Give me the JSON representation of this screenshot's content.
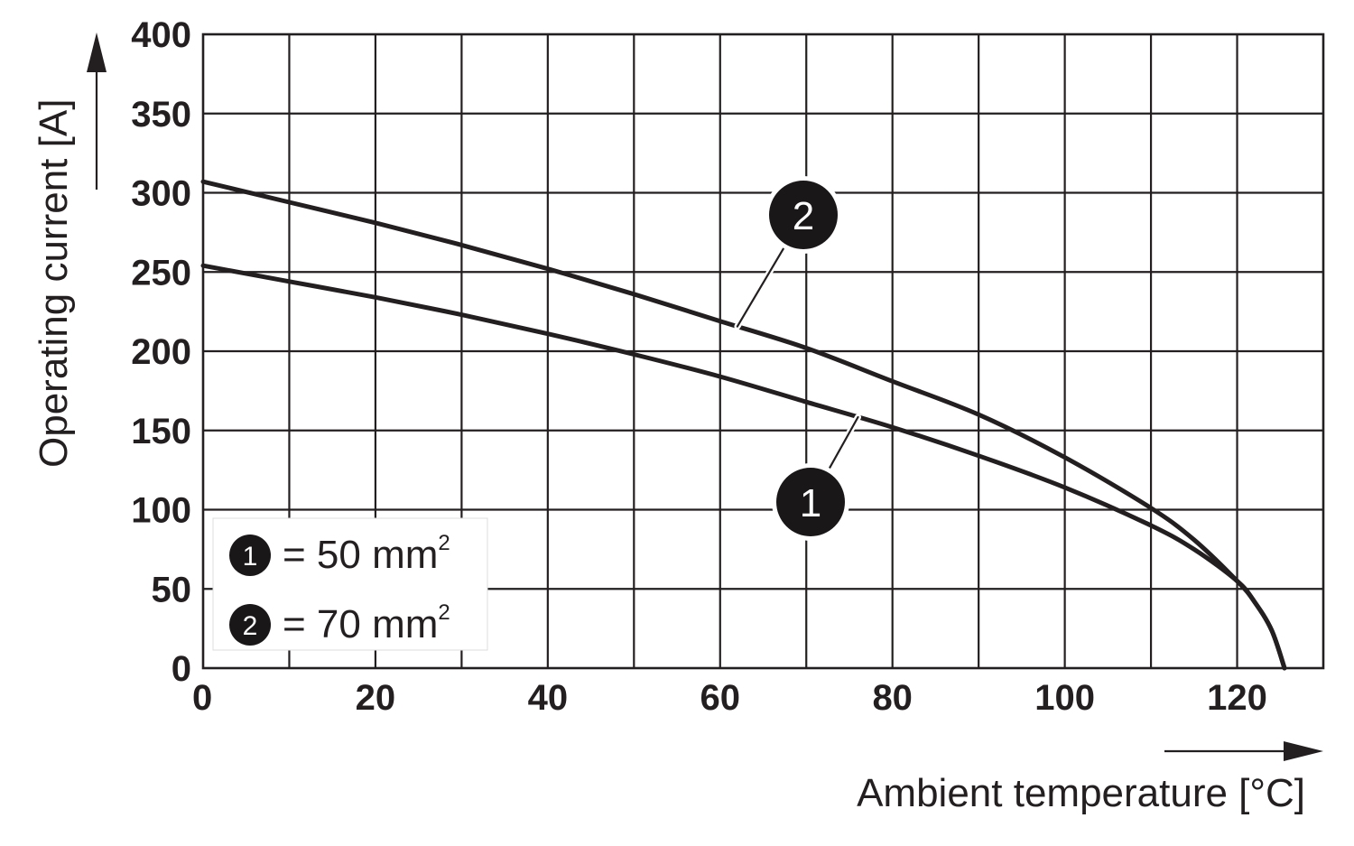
{
  "chart_data": {
    "type": "line",
    "xlabel": "Ambient temperature [°C]",
    "ylabel": "Operating current [A]",
    "xlim": [
      0,
      130
    ],
    "ylim": [
      0,
      400
    ],
    "x_ticks": [
      "0",
      "20",
      "40",
      "60",
      "80",
      "100",
      "120"
    ],
    "y_ticks": [
      "0",
      "50",
      "100",
      "150",
      "200",
      "250",
      "300",
      "350",
      "400"
    ],
    "x_grid_step": 10,
    "y_grid_step": 50,
    "grid": true,
    "legend_position": "bottom-left",
    "series": [
      {
        "name": "1",
        "x": [
          0,
          10,
          20,
          30,
          40,
          50,
          60,
          70,
          80,
          90,
          100,
          110,
          115,
          120,
          122,
          124,
          125.5
        ],
        "y": [
          254,
          244,
          234,
          223,
          211,
          198,
          184,
          168,
          152,
          134,
          114,
          90,
          75,
          55,
          42,
          24,
          0
        ]
      },
      {
        "name": "2",
        "x": [
          0,
          10,
          20,
          30,
          40,
          50,
          60,
          70,
          80,
          90,
          100,
          110,
          115,
          120,
          122,
          124,
          125.5
        ],
        "y": [
          307,
          294,
          281,
          267,
          252,
          236,
          219,
          202,
          181,
          160,
          133,
          101,
          81,
          55,
          42,
          24,
          0
        ]
      }
    ],
    "legend": [
      {
        "marker": "1",
        "text": "= 50 mm",
        "sup": "2"
      },
      {
        "marker": "2",
        "text": "= 70 mm",
        "sup": "2"
      }
    ],
    "callouts": [
      {
        "label": "2",
        "series": "2",
        "at_x": 62
      },
      {
        "label": "1",
        "series": "1",
        "at_x": 76
      }
    ]
  }
}
